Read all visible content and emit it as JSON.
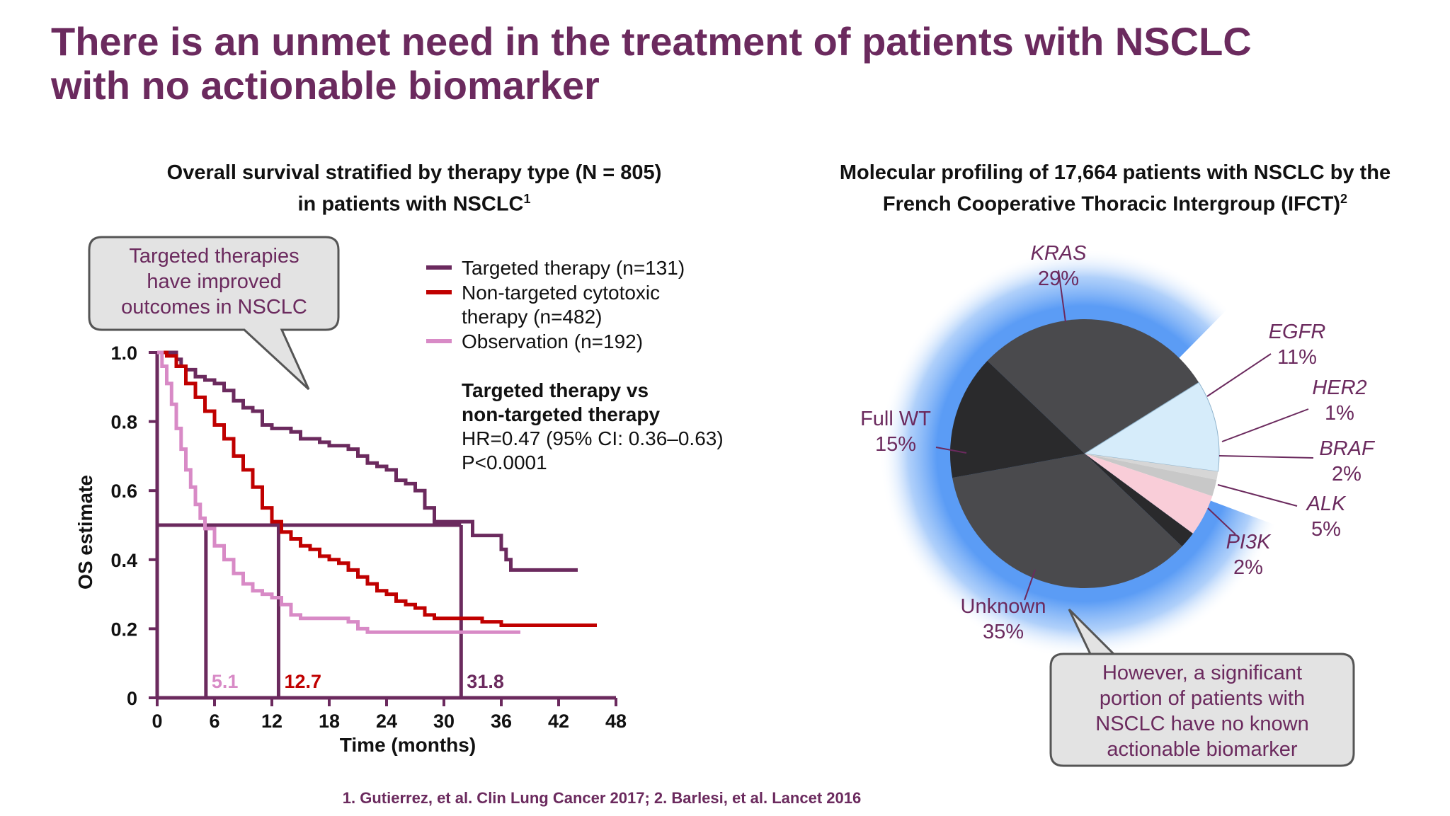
{
  "title": "There is an unmet need in the treatment of patients with NSCLC with no actionable biomarker",
  "left_panel": {
    "title_line1": "Overall survival stratified by therapy type (N = 805)",
    "title_line2": "in patients with NSCLC",
    "title_sup": "1",
    "callout": [
      "Targeted therapies",
      "have improved",
      "outcomes in NSCLC"
    ],
    "legend": [
      "Targeted therapy (n=131)",
      "Non-targeted cytotoxic",
      "therapy (n=482)",
      "Observation (n=192)"
    ],
    "stats_title": [
      "Targeted therapy vs",
      "non-targeted therapy"
    ],
    "stats_hr": "HR=0.47 (95% CI: 0.36–0.63)",
    "stats_p": "P<0.0001"
  },
  "right_panel": {
    "title_line1": "Molecular profiling of 17,664 patients with NSCLC by the",
    "title_line2": "French Cooperative Thoracic Intergroup (IFCT)",
    "title_sup": "2",
    "callout": [
      "However, a significant",
      "portion of patients with",
      "NSCLC have no known",
      "actionable biomarker"
    ]
  },
  "footnote": "1. Gutierrez, et al. Clin Lung Cancer 2017; 2. Barlesi, et al. Lancet 2016",
  "colors": {
    "title": "#6b2a5e",
    "targeted": "#6b2a5e",
    "nontargeted": "#c00000",
    "observation": "#d88ac6",
    "dark_slice": "#4a4a4d",
    "darker_slice": "#2a2a2c",
    "egfr": "#d6ecfa",
    "alk": "#f9cdd8",
    "light_slice": "#d6d6d6",
    "glow": "#5b9cf5"
  },
  "chart_data": [
    {
      "type": "line",
      "xlabel": "Time (months)",
      "ylabel": "OS estimate",
      "xlim": [
        0,
        48
      ],
      "ylim": [
        0,
        1
      ],
      "xticks": [
        0,
        6,
        12,
        18,
        24,
        30,
        36,
        42,
        48
      ],
      "yticks": [
        {
          "value": 0,
          "label": "0"
        },
        {
          "value": 0.2,
          "label": "0.2"
        },
        {
          "value": 0.4,
          "label": "0.4"
        },
        {
          "value": 0.6,
          "label": "0.6"
        },
        {
          "value": 0.8,
          "label": "0.8"
        },
        {
          "value": 1.0,
          "label": "1.0"
        }
      ],
      "median_line": 0.5,
      "series": [
        {
          "name": "Targeted therapy (n=131)",
          "color": "#6b2a5e",
          "median": 31.8,
          "median_label": "31.8",
          "points": [
            [
              0,
              1.0
            ],
            [
              1.5,
              1.0
            ],
            [
              2,
              0.98
            ],
            [
              2.5,
              0.96
            ],
            [
              3,
              0.95
            ],
            [
              4,
              0.93
            ],
            [
              5,
              0.92
            ],
            [
              6,
              0.91
            ],
            [
              7,
              0.89
            ],
            [
              8,
              0.86
            ],
            [
              9,
              0.84
            ],
            [
              10,
              0.83
            ],
            [
              11,
              0.79
            ],
            [
              12,
              0.78
            ],
            [
              13,
              0.78
            ],
            [
              14,
              0.77
            ],
            [
              15,
              0.75
            ],
            [
              16,
              0.75
            ],
            [
              17,
              0.74
            ],
            [
              18,
              0.73
            ],
            [
              19,
              0.73
            ],
            [
              20,
              0.72
            ],
            [
              21,
              0.7
            ],
            [
              22,
              0.68
            ],
            [
              23,
              0.67
            ],
            [
              24,
              0.66
            ],
            [
              25,
              0.63
            ],
            [
              26,
              0.62
            ],
            [
              27,
              0.6
            ],
            [
              28,
              0.55
            ],
            [
              29,
              0.51
            ],
            [
              30,
              0.51
            ],
            [
              31,
              0.51
            ],
            [
              32,
              0.51
            ],
            [
              33,
              0.47
            ],
            [
              34,
              0.47
            ],
            [
              35,
              0.47
            ],
            [
              36,
              0.43
            ],
            [
              36.5,
              0.4
            ],
            [
              37,
              0.37
            ],
            [
              41,
              0.37
            ],
            [
              44,
              0.37
            ]
          ]
        },
        {
          "name": "Non-targeted cytotoxic therapy (n=482)",
          "color": "#c00000",
          "median": 12.7,
          "median_label": "12.7",
          "points": [
            [
              0,
              1.0
            ],
            [
              1,
              0.99
            ],
            [
              2,
              0.96
            ],
            [
              3,
              0.91
            ],
            [
              4,
              0.87
            ],
            [
              5,
              0.83
            ],
            [
              6,
              0.79
            ],
            [
              7,
              0.75
            ],
            [
              8,
              0.7
            ],
            [
              9,
              0.66
            ],
            [
              10,
              0.61
            ],
            [
              11,
              0.55
            ],
            [
              12,
              0.51
            ],
            [
              13,
              0.48
            ],
            [
              14,
              0.46
            ],
            [
              15,
              0.44
            ],
            [
              16,
              0.43
            ],
            [
              17,
              0.41
            ],
            [
              18,
              0.4
            ],
            [
              19,
              0.39
            ],
            [
              20,
              0.37
            ],
            [
              21,
              0.35
            ],
            [
              22,
              0.33
            ],
            [
              23,
              0.31
            ],
            [
              24,
              0.3
            ],
            [
              25,
              0.28
            ],
            [
              26,
              0.27
            ],
            [
              27,
              0.26
            ],
            [
              28,
              0.24
            ],
            [
              29,
              0.23
            ],
            [
              30,
              0.23
            ],
            [
              31,
              0.23
            ],
            [
              32,
              0.23
            ],
            [
              33,
              0.23
            ],
            [
              34,
              0.22
            ],
            [
              35,
              0.22
            ],
            [
              36,
              0.21
            ],
            [
              38,
              0.21
            ],
            [
              40,
              0.21
            ],
            [
              42,
              0.21
            ],
            [
              46,
              0.21
            ]
          ]
        },
        {
          "name": "Observation (n=192)",
          "color": "#d88ac6",
          "median": 5.1,
          "median_label": "5.1",
          "points": [
            [
              0,
              1.0
            ],
            [
              0.5,
              0.96
            ],
            [
              1,
              0.91
            ],
            [
              1.5,
              0.85
            ],
            [
              2,
              0.78
            ],
            [
              2.5,
              0.72
            ],
            [
              3,
              0.66
            ],
            [
              3.5,
              0.61
            ],
            [
              4,
              0.56
            ],
            [
              4.5,
              0.52
            ],
            [
              5,
              0.49
            ],
            [
              6,
              0.44
            ],
            [
              7,
              0.4
            ],
            [
              8,
              0.36
            ],
            [
              9,
              0.33
            ],
            [
              10,
              0.31
            ],
            [
              11,
              0.3
            ],
            [
              12,
              0.29
            ],
            [
              13,
              0.27
            ],
            [
              14,
              0.24
            ],
            [
              15,
              0.23
            ],
            [
              16,
              0.23
            ],
            [
              18,
              0.23
            ],
            [
              20,
              0.22
            ],
            [
              21,
              0.2
            ],
            [
              22,
              0.19
            ],
            [
              24,
              0.19
            ],
            [
              26,
              0.19
            ],
            [
              28,
              0.19
            ],
            [
              30,
              0.19
            ],
            [
              32,
              0.19
            ],
            [
              34,
              0.19
            ],
            [
              36,
              0.19
            ],
            [
              38,
              0.19
            ]
          ]
        }
      ]
    },
    {
      "type": "pie",
      "slices": [
        {
          "label": "KRAS",
          "value": 29,
          "display": "29%",
          "italic": true,
          "color": "#4a4a4d"
        },
        {
          "label": "EGFR",
          "value": 11,
          "display": "11%",
          "italic": true,
          "color": "#d6ecfa"
        },
        {
          "label": "HER2",
          "value": 1,
          "display": "1%",
          "italic": true,
          "color": "#d6d6d6"
        },
        {
          "label": "BRAF",
          "value": 2,
          "display": "2%",
          "italic": true,
          "color": "#c8c8c8"
        },
        {
          "label": "ALK",
          "value": 5,
          "display": "5%",
          "italic": true,
          "color": "#f9cdd8"
        },
        {
          "label": "PI3K",
          "value": 2,
          "display": "2%",
          "italic": true,
          "color": "#2a2a2c"
        },
        {
          "label": "Unknown",
          "value": 35,
          "display": "35%",
          "italic": false,
          "color": "#4a4a4d"
        },
        {
          "label": "Full WT",
          "value": 15,
          "display": "15%",
          "italic": false,
          "color": "#2a2a2c"
        }
      ]
    }
  ]
}
